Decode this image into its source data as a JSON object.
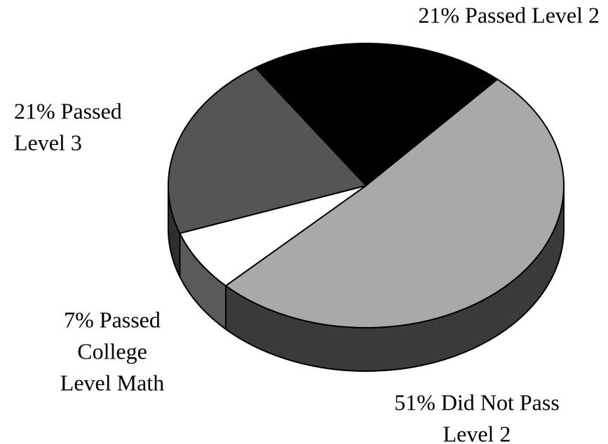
{
  "chart_data": {
    "type": "pie3d",
    "categories": [
      "Passed Level 2",
      "Did Not Pass Level 2",
      "Passed College Level Math",
      "Passed Level 3"
    ],
    "values": [
      21,
      51,
      7,
      21
    ],
    "value_labels": [
      [
        "21% Passed Level 2"
      ],
      [
        "51% Did Not Pass",
        "Level 2"
      ],
      [
        "7% Passed",
        "College",
        "Level Math"
      ],
      [
        "21% Passed",
        "Level 3"
      ]
    ],
    "colors": [
      "#000000",
      "#a9a9a9",
      "#ffffff",
      "#555555"
    ],
    "side_colors": [
      "#000000",
      "#3a3a3a",
      "#5a5a5a",
      "#2e2e2e"
    ]
  }
}
